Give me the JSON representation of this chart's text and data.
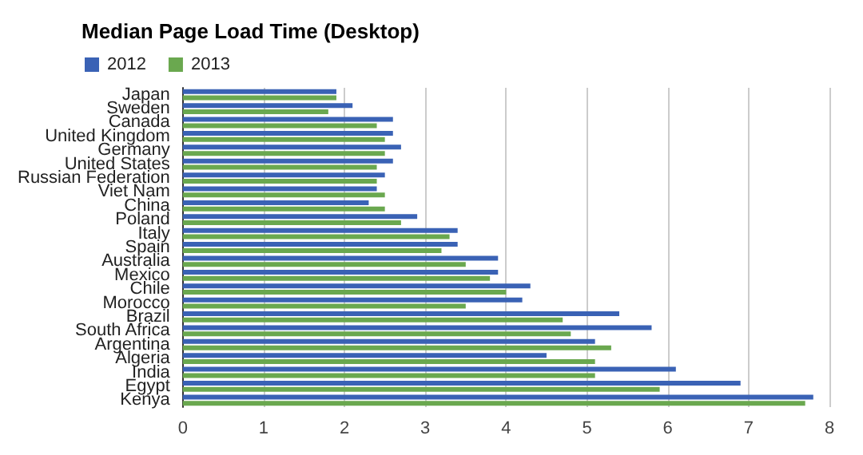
{
  "chart_data": {
    "type": "bar",
    "orientation": "horizontal",
    "title": "Median Page Load Time (Desktop)",
    "categories": [
      "Japan",
      "Sweden",
      "Canada",
      "United Kingdom",
      "Germany",
      "United States",
      "Russian Federation",
      "Viet Nam",
      "China",
      "Poland",
      "Italy",
      "Spain",
      "Australia",
      "Mexico",
      "Chile",
      "Morocco",
      "Brazil",
      "South Africa",
      "Argentina",
      "Algeria",
      "India",
      "Egypt",
      "Kenya"
    ],
    "series": [
      {
        "name": "2012",
        "color": "#3a62b5",
        "values": [
          1.9,
          2.1,
          2.6,
          2.6,
          2.7,
          2.6,
          2.5,
          2.4,
          2.3,
          2.9,
          3.4,
          3.4,
          3.9,
          3.9,
          4.3,
          4.2,
          5.4,
          5.8,
          5.1,
          4.5,
          6.1,
          6.9,
          7.8
        ]
      },
      {
        "name": "2013",
        "color": "#6aa84f",
        "values": [
          1.9,
          1.8,
          2.4,
          2.5,
          2.5,
          2.4,
          2.4,
          2.5,
          2.5,
          2.7,
          3.3,
          3.2,
          3.5,
          3.8,
          4.0,
          3.5,
          4.7,
          4.8,
          5.3,
          5.1,
          5.1,
          5.9,
          7.7
        ]
      }
    ],
    "xlim": [
      0,
      8
    ],
    "xticks": [
      0,
      1,
      2,
      3,
      4,
      5,
      6,
      7,
      8
    ],
    "grid": "x",
    "legend": "top left"
  }
}
